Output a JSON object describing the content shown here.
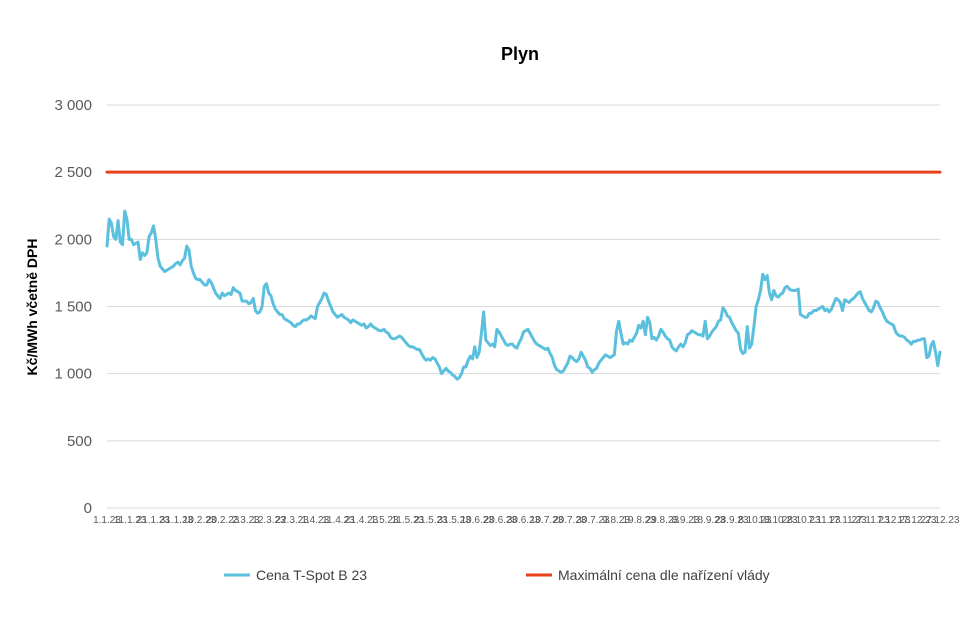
{
  "chart_data": {
    "type": "line",
    "title": "Plyn",
    "ylabel": "Kč/MWh včetně DPH",
    "xlabel": "",
    "ylim": [
      0,
      3000
    ],
    "yticks": [
      0,
      500,
      1000,
      1500,
      2000,
      2500,
      3000
    ],
    "ytick_labels": [
      "0",
      "500",
      "1 000",
      "1 500",
      "2 000",
      "2 500",
      "3 000"
    ],
    "grid": true,
    "legend_position": "bottom",
    "x_tick_labels": [
      "1.1.23",
      "11.1.23",
      "21.1.23",
      "31.1.23",
      "10.2.23",
      "20.2.23",
      "2.3.23",
      "12.3.23",
      "22.3.23",
      "1.4.23",
      "11.4.23",
      "21.4.23",
      "1.5.23",
      "11.5.23",
      "21.5.23",
      "31.5.23",
      "10.6.23",
      "20.6.23",
      "30.6.23",
      "10.7.23",
      "20.7.23",
      "30.7.23",
      "9.8.23",
      "19.8.23",
      "29.8.23",
      "8.9.23",
      "18.9.23",
      "28.9.23",
      "8.10.23",
      "18.10.23",
      "28.10.23",
      "7.11.23",
      "17.11.23",
      "27.11.23",
      "7.12.23",
      "17.12.23",
      "27.12.23"
    ],
    "series": [
      {
        "name": "Cena T-Spot B 23",
        "color": "#5bc0de",
        "values": [
          1950,
          2150,
          2120,
          2020,
          2000,
          2140,
          1980,
          1960,
          2210,
          2150,
          2000,
          2000,
          1960,
          1970,
          1980,
          1850,
          1900,
          1880,
          1900,
          2020,
          2050,
          2100,
          2000,
          1860,
          1800,
          1780,
          1760,
          1770,
          1780,
          1790,
          1800,
          1820,
          1830,
          1810,
          1840,
          1860,
          1950,
          1920,
          1800,
          1750,
          1710,
          1700,
          1700,
          1680,
          1660,
          1660,
          1700,
          1680,
          1640,
          1600,
          1580,
          1560,
          1600,
          1580,
          1590,
          1600,
          1590,
          1640,
          1620,
          1610,
          1600,
          1540,
          1540,
          1540,
          1520,
          1530,
          1560,
          1470,
          1450,
          1460,
          1500,
          1650,
          1670,
          1600,
          1580,
          1520,
          1480,
          1460,
          1440,
          1440,
          1410,
          1400,
          1390,
          1380,
          1360,
          1350,
          1370,
          1370,
          1390,
          1400,
          1400,
          1410,
          1430,
          1420,
          1410,
          1500,
          1530,
          1560,
          1600,
          1590,
          1540,
          1500,
          1460,
          1440,
          1420,
          1430,
          1440,
          1420,
          1410,
          1400,
          1380,
          1400,
          1390,
          1380,
          1370,
          1360,
          1370,
          1340,
          1350,
          1370,
          1350,
          1340,
          1330,
          1320,
          1320,
          1330,
          1310,
          1300,
          1270,
          1260,
          1260,
          1270,
          1280,
          1270,
          1250,
          1230,
          1210,
          1200,
          1200,
          1190,
          1180,
          1180,
          1150,
          1120,
          1100,
          1110,
          1100,
          1120,
          1110,
          1080,
          1050,
          1000,
          1020,
          1040,
          1020,
          1010,
          990,
          980,
          960,
          970,
          1000,
          1050,
          1050,
          1100,
          1130,
          1110,
          1200,
          1120,
          1160,
          1300,
          1460,
          1250,
          1230,
          1210,
          1220,
          1200,
          1330,
          1310,
          1280,
          1250,
          1220,
          1210,
          1220,
          1220,
          1200,
          1190,
          1230,
          1260,
          1310,
          1320,
          1330,
          1300,
          1270,
          1240,
          1220,
          1210,
          1200,
          1190,
          1180,
          1190,
          1150,
          1120,
          1060,
          1030,
          1020,
          1010,
          1020,
          1050,
          1080,
          1130,
          1120,
          1100,
          1090,
          1110,
          1160,
          1130,
          1100,
          1050,
          1040,
          1010,
          1030,
          1040,
          1080,
          1100,
          1120,
          1140,
          1130,
          1120,
          1130,
          1140,
          1320,
          1390,
          1300,
          1220,
          1230,
          1220,
          1250,
          1240,
          1270,
          1300,
          1360,
          1340,
          1390,
          1290,
          1420,
          1380,
          1260,
          1270,
          1250,
          1280,
          1330,
          1310,
          1280,
          1260,
          1250,
          1200,
          1180,
          1170,
          1200,
          1220,
          1200,
          1230,
          1290,
          1300,
          1320,
          1310,
          1300,
          1290,
          1290,
          1280,
          1390,
          1260,
          1280,
          1310,
          1330,
          1350,
          1390,
          1400,
          1490,
          1470,
          1430,
          1420,
          1380,
          1350,
          1320,
          1300,
          1180,
          1150,
          1160,
          1350,
          1190,
          1220,
          1350,
          1500,
          1550,
          1620,
          1740,
          1700,
          1730,
          1600,
          1550,
          1620,
          1580,
          1570,
          1590,
          1600,
          1640,
          1650,
          1630,
          1620,
          1620,
          1620,
          1630,
          1440,
          1430,
          1420,
          1420,
          1450,
          1450,
          1470,
          1470,
          1480,
          1490,
          1500,
          1470,
          1480,
          1460,
          1480,
          1520,
          1560,
          1550,
          1530,
          1470,
          1550,
          1540,
          1530,
          1550,
          1560,
          1580,
          1600,
          1610,
          1560,
          1530,
          1500,
          1470,
          1460,
          1490,
          1540,
          1530,
          1490,
          1460,
          1420,
          1390,
          1380,
          1370,
          1360,
          1310,
          1290,
          1280,
          1280,
          1270,
          1250,
          1240,
          1220,
          1240,
          1240,
          1250,
          1250,
          1260,
          1260,
          1120,
          1130,
          1210,
          1240,
          1160,
          1060,
          1160
        ]
      },
      {
        "name": "Maximální cena dle nařízení vlády",
        "color": "#e8411b",
        "values": [
          2500,
          2500
        ]
      }
    ]
  }
}
